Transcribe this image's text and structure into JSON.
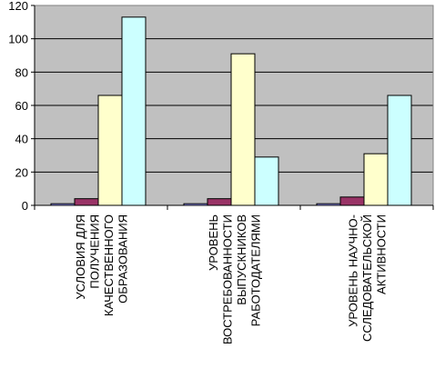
{
  "chart_data": {
    "type": "bar",
    "categories": [
      [
        "УСЛОВИЯ ДЛЯ",
        "ПОЛУЧЕНИЯ",
        "КАЧЕСТВЕННОГО",
        "ОБРАЗОВАНИЯ"
      ],
      [
        "УРОВЕНЬ",
        "ВОСТРЕБОВАННОСТИ",
        "ВЫПУСКНИКОВ",
        "РАБОТОДАТЕЛЯМИ"
      ],
      [
        "УРОВЕНЬ НАУЧНО-",
        "ССЛЕДОВАТЕЛЬСКОЙ",
        "АКТИВНОСТИ"
      ]
    ],
    "series": [
      {
        "values": [
          1,
          1,
          1
        ],
        "color": "#9999ff"
      },
      {
        "values": [
          4,
          4,
          5
        ],
        "color": "#993366"
      },
      {
        "values": [
          66,
          91,
          31
        ],
        "color": "#ffffcc"
      },
      {
        "values": [
          113,
          29,
          66
        ],
        "color": "#ccffff"
      }
    ],
    "ylim": [
      0,
      120
    ],
    "yticks": [
      0,
      20,
      40,
      60,
      80,
      100,
      120
    ],
    "plot_background": "#c0c0c0",
    "grid": true,
    "legend": "none"
  }
}
